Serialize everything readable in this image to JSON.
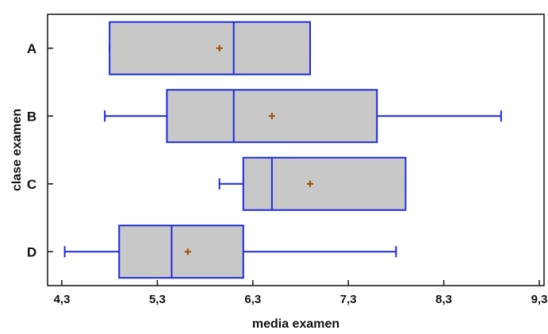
{
  "chart_data": {
    "type": "boxplot",
    "orientation": "horizontal",
    "xlabel": "media examen",
    "ylabel": "clase examen",
    "xlim": [
      4.3,
      9.3
    ],
    "xticks": [
      4.3,
      5.3,
      6.3,
      7.3,
      8.3,
      9.3
    ],
    "xtick_labels": [
      "4,3",
      "5,3",
      "6,3",
      "7,3",
      "8,3",
      "9,3"
    ],
    "grid": false,
    "box_fill": "#c8c8c8",
    "box_stroke": "#1c2bdc",
    "mean_marker_color": "#a04a00",
    "categories": [
      "A",
      "B",
      "C",
      "D"
    ],
    "boxes": [
      {
        "label": "A",
        "min": 4.8,
        "q1": 4.8,
        "median": 6.1,
        "q3": 6.9,
        "max": 6.9,
        "mean": 5.95
      },
      {
        "label": "B",
        "min": 4.75,
        "q1": 5.4,
        "median": 6.1,
        "q3": 7.6,
        "max": 8.9,
        "mean": 6.5
      },
      {
        "label": "C",
        "min": 5.95,
        "q1": 6.2,
        "median": 6.5,
        "q3": 7.9,
        "max": 7.9,
        "mean": 6.9
      },
      {
        "label": "D",
        "min": 4.33,
        "q1": 4.9,
        "median": 5.45,
        "q3": 6.2,
        "max": 7.8,
        "mean": 5.62
      }
    ]
  }
}
